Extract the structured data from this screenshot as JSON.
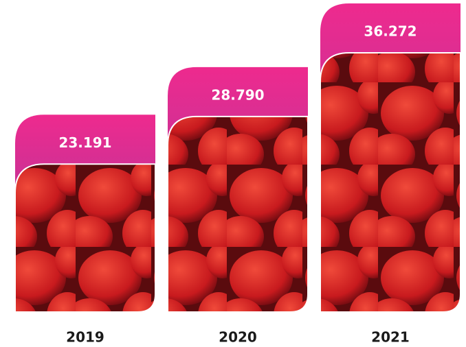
{
  "chart_data": {
    "type": "bar",
    "categories": [
      "2019",
      "2020",
      "2021"
    ],
    "values": [
      23191,
      28790,
      36272
    ],
    "value_labels": [
      "23.191",
      "28.790",
      "36.272"
    ],
    "color": "#e8208c"
  }
}
